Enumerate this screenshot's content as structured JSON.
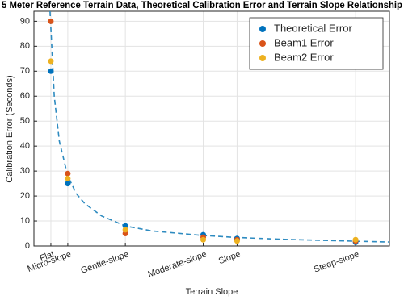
{
  "chart_data": {
    "type": "scatter",
    "title": "5 Meter Reference Terrain Data, Theoretical Calibration Error and Terrain Slope Relationship",
    "x_label": "Terrain Slope",
    "y_label": "Calibration Error (Seconds)",
    "x": [
      1,
      2,
      5.4,
      10,
      12,
      19
    ],
    "series": [
      {
        "name": "Theoretical Error",
        "color": "#0072bd",
        "values": [
          70,
          25,
          8,
          4.5,
          3,
          1.5
        ]
      },
      {
        "name": "Beam1 Error",
        "color": "#d95319",
        "values": [
          90,
          29,
          5,
          3.5,
          2.5,
          2
        ]
      },
      {
        "name": "Beam2 Error",
        "color": "#edb120",
        "values": [
          74,
          27,
          6.5,
          2.5,
          2,
          2.5
        ]
      }
    ],
    "fit": {
      "color": "#2e8bc0",
      "line_style": "dashed",
      "x": [
        0.95,
        1.2,
        1.5,
        2,
        2.5,
        3,
        4,
        5.4,
        7,
        10,
        12,
        15,
        19,
        21
      ],
      "values": [
        94,
        60,
        42,
        28,
        21,
        17,
        12,
        8,
        6,
        4.2,
        3.4,
        2.6,
        1.9,
        1.6
      ]
    },
    "xlim": [
      0,
      21
    ],
    "ylim": [
      0,
      94
    ],
    "xticks": [
      {
        "value": 1,
        "label": "Flat"
      },
      {
        "value": 2,
        "label": "Micro-slope"
      },
      {
        "value": 5.4,
        "label": "Gentle-slope"
      },
      {
        "value": 10,
        "label": "Moderate-slope"
      },
      {
        "value": 12,
        "label": "Slope"
      },
      {
        "value": 19,
        "label": "Steep-slope"
      }
    ],
    "yticks": [
      0,
      10,
      20,
      30,
      40,
      50,
      60,
      70,
      80,
      90
    ],
    "grid": true,
    "legend_position": "upper-right"
  }
}
